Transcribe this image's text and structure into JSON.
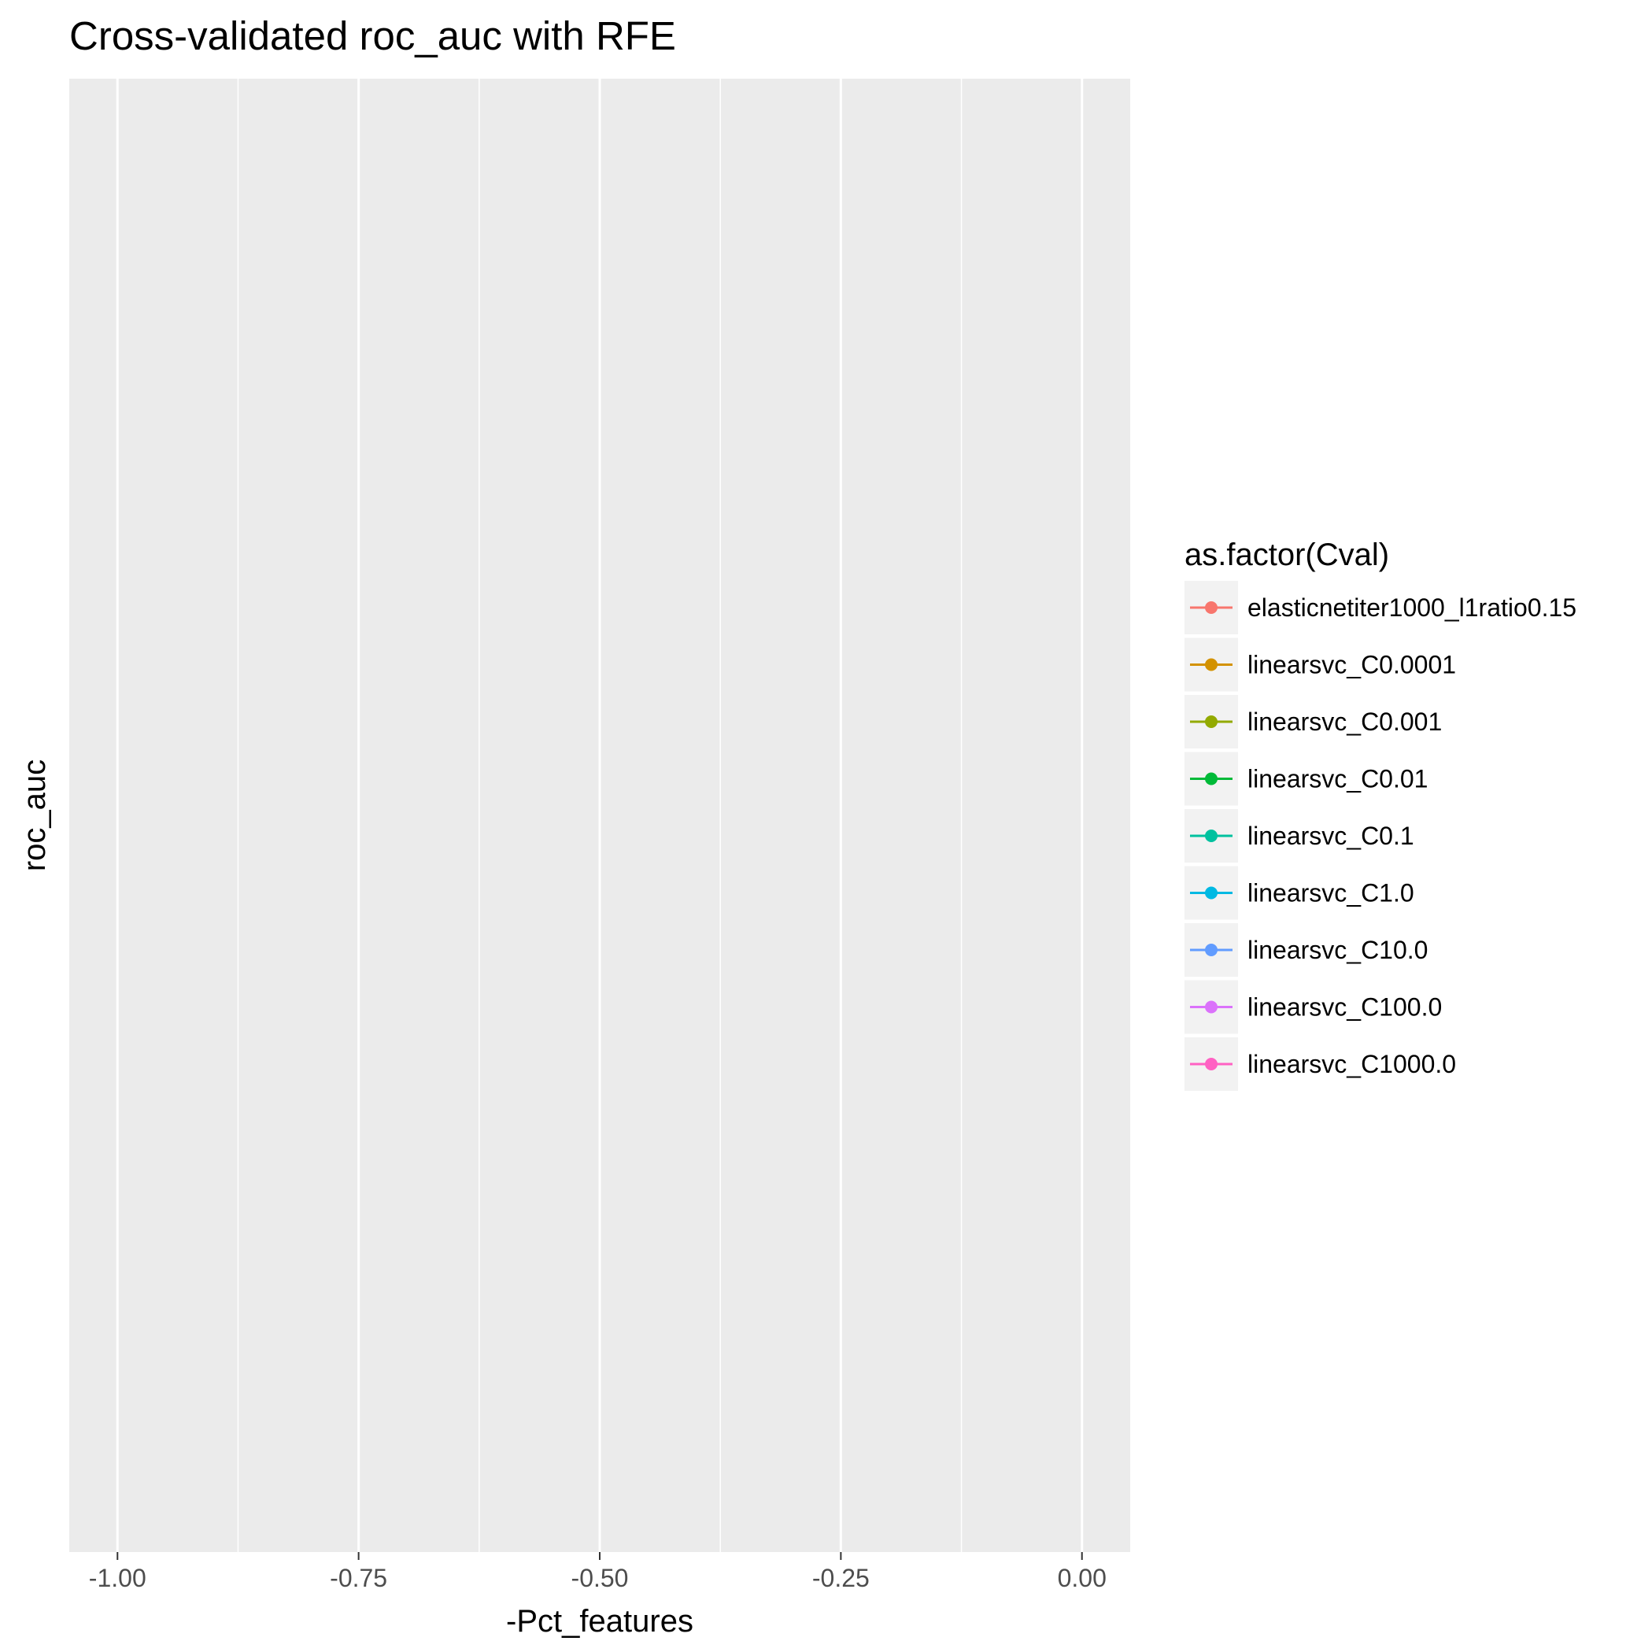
{
  "chart_data": {
    "type": "line",
    "title": "Cross-validated roc_auc with RFE",
    "xlabel": "-Pct_features",
    "ylabel": "roc_auc",
    "xlim": [
      -1.05,
      0.05
    ],
    "x_ticks": [
      -1.0,
      -0.75,
      -0.5,
      -0.25,
      0.0
    ],
    "x_tick_labels": [
      "-1.00",
      "-0.75",
      "-0.50",
      "-0.25",
      "0.00"
    ],
    "y_ticks": [],
    "grid": true,
    "legend": {
      "title": "as.factor(Cval)",
      "placement": "right"
    },
    "series": [
      {
        "name": "elasticnetiter1000_l1ratio0.15",
        "color": "#F8766D",
        "x": [],
        "y": []
      },
      {
        "name": "linearsvc_C0.0001",
        "color": "#D39200",
        "x": [],
        "y": []
      },
      {
        "name": "linearsvc_C0.001",
        "color": "#93AA00",
        "x": [],
        "y": []
      },
      {
        "name": "linearsvc_C0.01",
        "color": "#00BA38",
        "x": [],
        "y": []
      },
      {
        "name": "linearsvc_C0.1",
        "color": "#00C19F",
        "x": [],
        "y": []
      },
      {
        "name": "linearsvc_C1.0",
        "color": "#00B9E3",
        "x": [],
        "y": []
      },
      {
        "name": "linearsvc_C10.0",
        "color": "#619CFF",
        "x": [],
        "y": []
      },
      {
        "name": "linearsvc_C100.0",
        "color": "#DB72FB",
        "x": [],
        "y": []
      },
      {
        "name": "linearsvc_C1000.0",
        "color": "#FF61C3",
        "x": [],
        "y": []
      }
    ]
  }
}
